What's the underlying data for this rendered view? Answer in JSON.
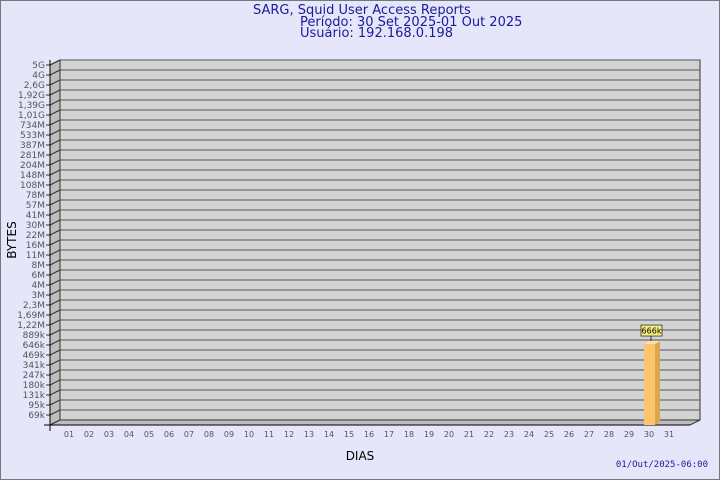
{
  "title": {
    "line1": "SARG, Squid User Access Reports",
    "line2": "Período: 30 Set 2025-01 Out 2025",
    "line3": "Usuário: 192.168.0.198"
  },
  "footer": "01/Out/2025-06:00",
  "colors": {
    "background": "#e6e6fa",
    "plot": "#d3d3d3",
    "bar": "#fdc56b",
    "bar_side": "#dca54e",
    "label_box": "#f4ec7c",
    "text": "#1a1a9c"
  },
  "chart_data": {
    "type": "bar",
    "xlabel": "DIAS",
    "ylabel": "BYTES",
    "categories": [
      "01",
      "02",
      "03",
      "04",
      "05",
      "06",
      "07",
      "08",
      "09",
      "10",
      "11",
      "12",
      "13",
      "14",
      "15",
      "16",
      "17",
      "18",
      "19",
      "20",
      "21",
      "22",
      "23",
      "24",
      "25",
      "26",
      "27",
      "28",
      "29",
      "30",
      "31"
    ],
    "yticks": [
      "5G",
      "4G",
      "2,6G",
      "1,92G",
      "1,39G",
      "1,01G",
      "734M",
      "533M",
      "387M",
      "281M",
      "204M",
      "148M",
      "108M",
      "78M",
      "57M",
      "41M",
      "30M",
      "22M",
      "16M",
      "11M",
      "8M",
      "6M",
      "4M",
      "3M",
      "2,3M",
      "1,69M",
      "1,22M",
      "889k",
      "646k",
      "469k",
      "341k",
      "247k",
      "180k",
      "131k",
      "95k",
      "69k"
    ],
    "yscale": "log",
    "grid": true,
    "bars": [
      {
        "category": "30",
        "value": 666000,
        "label": "666k"
      }
    ]
  }
}
